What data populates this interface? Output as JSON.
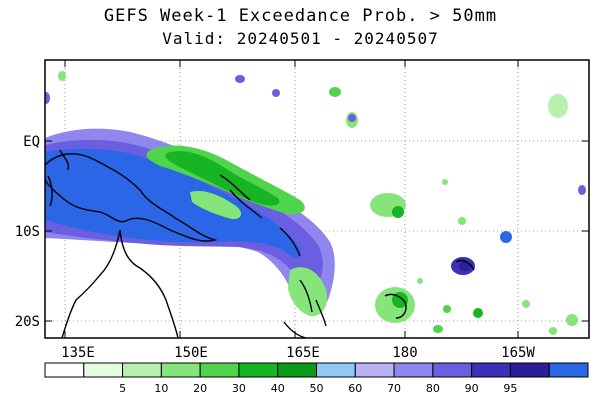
{
  "title": "GEFS Week-1 Exceedance Prob. > 50mm",
  "subtitle": "Valid: 20240501 - 20240507",
  "lat_labels": [
    "EQ",
    "10S",
    "20S"
  ],
  "lon_labels": [
    "135E",
    "150E",
    "165E",
    "180",
    "165W"
  ],
  "colorbar": {
    "colors": [
      "#ffffff",
      "#e3fbdf",
      "#b8f1ad",
      "#86e57a",
      "#4fd44c",
      "#17b423",
      "#0a9b1a",
      "#8fc9f5",
      "#b9b3f5",
      "#8f87ee",
      "#6a5fe0",
      "#3d2fb7",
      "#2c1e98",
      "#2a66e6"
    ],
    "labels": [
      "5",
      "10",
      "20",
      "30",
      "40",
      "50",
      "60",
      "70",
      "80",
      "90",
      "95"
    ]
  }
}
